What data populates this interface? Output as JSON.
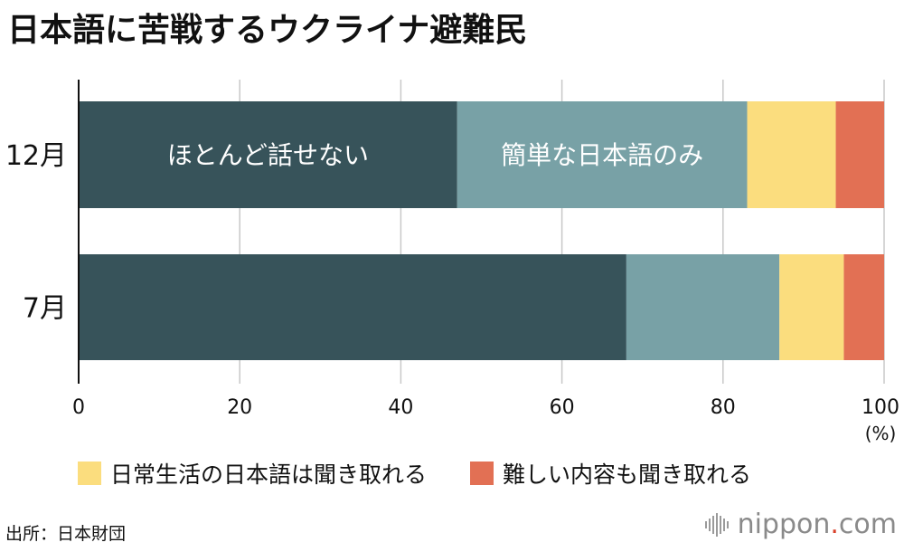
{
  "title": "日本語に苦戦するウクライナ避難民",
  "source": "出所：日本財団",
  "logo": {
    "name": "nippon",
    "dot": ".",
    "suffix": "com"
  },
  "colors": {
    "cannot_speak": "#37535a",
    "simple_only": "#78a1a6",
    "daily_listening": "#fbdd7e",
    "difficult_listening": "#e27054",
    "grid": "#c8c8c8",
    "axis": "#111111"
  },
  "chart_data": {
    "type": "bar",
    "orientation": "horizontal",
    "stacked": true,
    "title": "日本語に苦戦するウクライナ避難民",
    "categories": [
      "12月",
      "7月"
    ],
    "series": [
      {
        "name": "ほとんど話せない",
        "values": [
          47,
          68
        ],
        "color": "#37535a"
      },
      {
        "name": "簡単な日本語のみ",
        "values": [
          36,
          19
        ],
        "color": "#78a1a6"
      },
      {
        "name": "日常生活の日本語は聞き取れる",
        "values": [
          11,
          8
        ],
        "color": "#fbdd7e"
      },
      {
        "name": "難しい内容も聞き取れる",
        "values": [
          6,
          5
        ],
        "color": "#e27054"
      }
    ],
    "xlim": [
      0,
      100
    ],
    "xticks": [
      0,
      20,
      40,
      60,
      80,
      100
    ],
    "x_unit": "(%)",
    "grid": true,
    "legend": [
      {
        "label": "日常生活の日本語は聞き取れる",
        "color": "#fbdd7e"
      },
      {
        "label": "難しい内容も聞き取れる",
        "color": "#e27054"
      }
    ],
    "inline_labels": [
      {
        "text": "ほとんど話せない",
        "category": 0,
        "series": 0
      },
      {
        "text": "簡単な日本語のみ",
        "category": 0,
        "series": 1
      }
    ]
  }
}
